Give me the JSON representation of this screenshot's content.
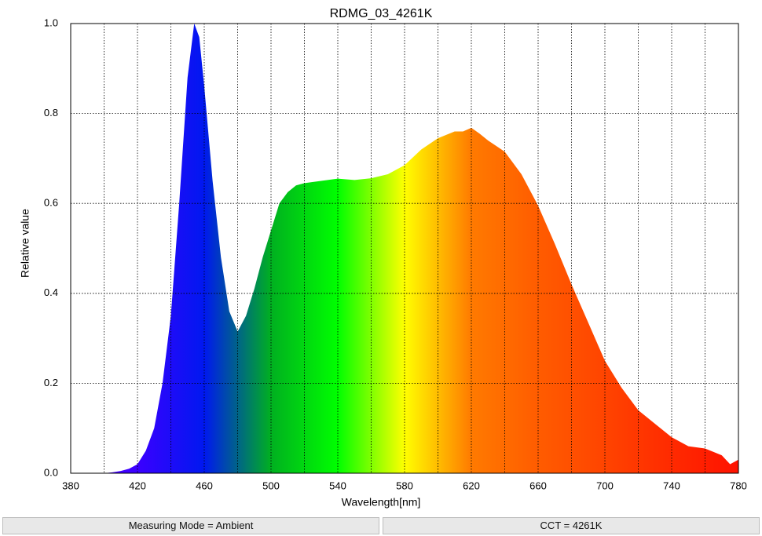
{
  "chart_data": {
    "type": "area",
    "title": "RDMG_03_4261K",
    "x_label": "Wavelength[nm]",
    "y_label": "Relative value",
    "x": [
      380,
      390,
      400,
      405,
      410,
      415,
      420,
      425,
      430,
      435,
      440,
      445,
      450,
      454,
      457,
      460,
      465,
      470,
      475,
      480,
      485,
      490,
      495,
      500,
      505,
      510,
      515,
      520,
      530,
      540,
      550,
      560,
      570,
      580,
      590,
      600,
      610,
      615,
      620,
      625,
      630,
      640,
      650,
      660,
      670,
      680,
      690,
      700,
      710,
      720,
      730,
      740,
      750,
      760,
      770,
      775,
      780
    ],
    "values": [
      0,
      0,
      0,
      0.002,
      0.005,
      0.01,
      0.02,
      0.05,
      0.1,
      0.2,
      0.35,
      0.6,
      0.88,
      1.0,
      0.97,
      0.86,
      0.65,
      0.48,
      0.36,
      0.315,
      0.35,
      0.41,
      0.48,
      0.54,
      0.6,
      0.625,
      0.64,
      0.645,
      0.65,
      0.655,
      0.652,
      0.656,
      0.665,
      0.685,
      0.72,
      0.745,
      0.76,
      0.76,
      0.768,
      0.755,
      0.74,
      0.715,
      0.665,
      0.595,
      0.51,
      0.42,
      0.335,
      0.25,
      0.19,
      0.14,
      0.11,
      0.08,
      0.06,
      0.055,
      0.04,
      0.02,
      0.03
    ],
    "xlim": [
      380,
      780
    ],
    "ylim": [
      0,
      1
    ],
    "xticks": [
      380,
      420,
      460,
      500,
      540,
      580,
      620,
      660,
      700,
      740,
      780
    ],
    "x_minor_ticks": [
      400,
      440,
      480,
      520,
      560,
      600,
      640,
      680,
      720,
      760
    ],
    "yticks": [
      {
        "value": 0,
        "label": "0.0"
      },
      0.2,
      0.4,
      0.6,
      0.8,
      {
        "value": 1,
        "label": "1.0"
      }
    ],
    "grid": true,
    "colors": [
      "#5a00ff",
      "#3a00ff",
      "#0018f0",
      "#00b020",
      "#00ff00",
      "#ffff00",
      "#ff7a00",
      "#ff5c00",
      "#ff4400",
      "#ff2a00",
      "#ff1200"
    ]
  },
  "status_bar": [
    "Measuring Mode = Ambient",
    "CCT = 4261K"
  ]
}
